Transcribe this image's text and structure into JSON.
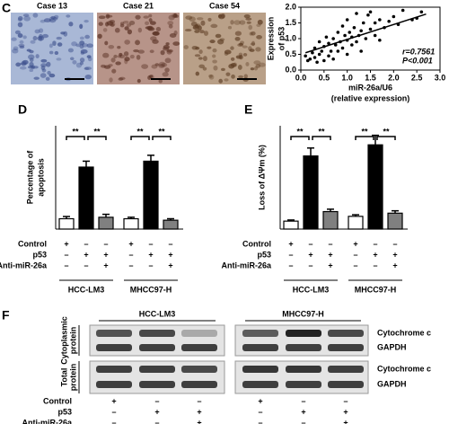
{
  "panel_labels": [
    "C",
    "D",
    "E",
    "F"
  ],
  "micrographs": [
    "Case 13",
    "Case 21",
    "Case 54"
  ],
  "chart_data": [
    {
      "type": "scatter",
      "ylabel": [
        "Expression",
        "of p53"
      ],
      "xlabel": [
        "miR-26a/U6",
        "(relative expression)"
      ],
      "xlim": [
        0,
        3
      ],
      "ylim": [
        0,
        2
      ],
      "xticks": [
        {
          "value": 0,
          "label": "0.0"
        },
        0.5,
        {
          "value": 1,
          "label": "1.0"
        },
        1.5,
        {
          "value": 2,
          "label": "2.0"
        },
        2.5,
        {
          "value": 3,
          "label": "3.0"
        }
      ],
      "yticks": [
        {
          "value": 0,
          "label": "0.0"
        },
        0.5,
        {
          "value": 1,
          "label": "1.0"
        },
        1.5,
        {
          "value": 2,
          "label": "2.0"
        }
      ],
      "x": [
        0.1,
        0.15,
        0.2,
        0.25,
        0.3,
        0.3,
        0.35,
        0.4,
        0.4,
        0.45,
        0.5,
        0.5,
        0.55,
        0.6,
        0.6,
        0.65,
        0.7,
        0.7,
        0.75,
        0.8,
        0.8,
        0.85,
        0.9,
        0.9,
        0.95,
        1.0,
        1.0,
        1.0,
        1.05,
        1.1,
        1.1,
        1.15,
        1.2,
        1.2,
        1.25,
        1.3,
        1.3,
        1.35,
        1.4,
        1.45,
        1.5,
        1.5,
        1.6,
        1.6,
        1.7,
        1.7,
        1.8,
        1.9,
        2.0,
        2.1,
        2.2,
        2.4,
        2.5,
        2.6
      ],
      "y": [
        0.45,
        0.3,
        0.35,
        0.55,
        0.4,
        0.7,
        0.25,
        0.5,
        0.9,
        0.6,
        0.3,
        0.75,
        1.05,
        0.45,
        0.85,
        0.6,
        1.0,
        0.35,
        0.8,
        0.6,
        1.2,
        0.9,
        0.7,
        1.4,
        1.1,
        0.5,
        0.95,
        1.6,
        1.2,
        0.8,
        1.05,
        1.35,
        0.9,
        1.8,
        1.1,
        0.6,
        1.25,
        1.5,
        1.0,
        1.75,
        1.3,
        1.85,
        1.1,
        1.5,
        0.95,
        1.6,
        1.35,
        1.55,
        1.7,
        1.45,
        1.9,
        1.6,
        1.65,
        1.85
      ],
      "trend_line": {
        "x": [
          0.1,
          2.7
        ],
        "y": [
          0.55,
          1.78
        ]
      },
      "annotations": [
        "r=0.7561",
        "P<0.001"
      ],
      "color": "#000000"
    },
    {
      "type": "bar",
      "ylabel": [
        "Percentage of",
        "apoptosis"
      ],
      "ylim": [
        0,
        70
      ],
      "values": [
        7,
        42,
        8,
        7,
        46,
        6
      ],
      "errors": [
        1.5,
        4,
        2,
        1,
        4,
        1
      ],
      "colors": [
        "#ffffff",
        "#000000",
        "#808080",
        "#ffffff",
        "#000000",
        "#808080"
      ],
      "annotations": [
        "**",
        "**",
        "**",
        "**"
      ]
    },
    {
      "type": "bar",
      "ylabel": [
        "Loss of ΔΨm (%)"
      ],
      "ylim": [
        0,
        65
      ],
      "values": [
        5,
        46,
        11,
        8,
        53,
        10
      ],
      "errors": [
        0.7,
        5,
        1.5,
        1,
        6,
        1.5
      ],
      "colors": [
        "#ffffff",
        "#000000",
        "#808080",
        "#ffffff",
        "#000000",
        "#808080"
      ],
      "annotations": [
        "**",
        "**",
        "**",
        "**"
      ]
    }
  ],
  "conditions": {
    "rows": [
      "Control",
      "p53",
      "Anti-miR-26a"
    ],
    "signs": [
      [
        "+",
        "–",
        "–",
        "+",
        "–",
        "–"
      ],
      [
        "–",
        "+",
        "+",
        "–",
        "+",
        "+"
      ],
      [
        "–",
        "–",
        "+",
        "–",
        "–",
        "+"
      ]
    ]
  },
  "groups": [
    "HCC-LM3",
    "MHCC97-H"
  ],
  "blot": {
    "row_groups": [
      [
        "Cytoplasmic",
        "protein"
      ],
      [
        "Total",
        "protein"
      ]
    ],
    "bands": [
      "Cytochrome c",
      "GAPDH"
    ]
  }
}
